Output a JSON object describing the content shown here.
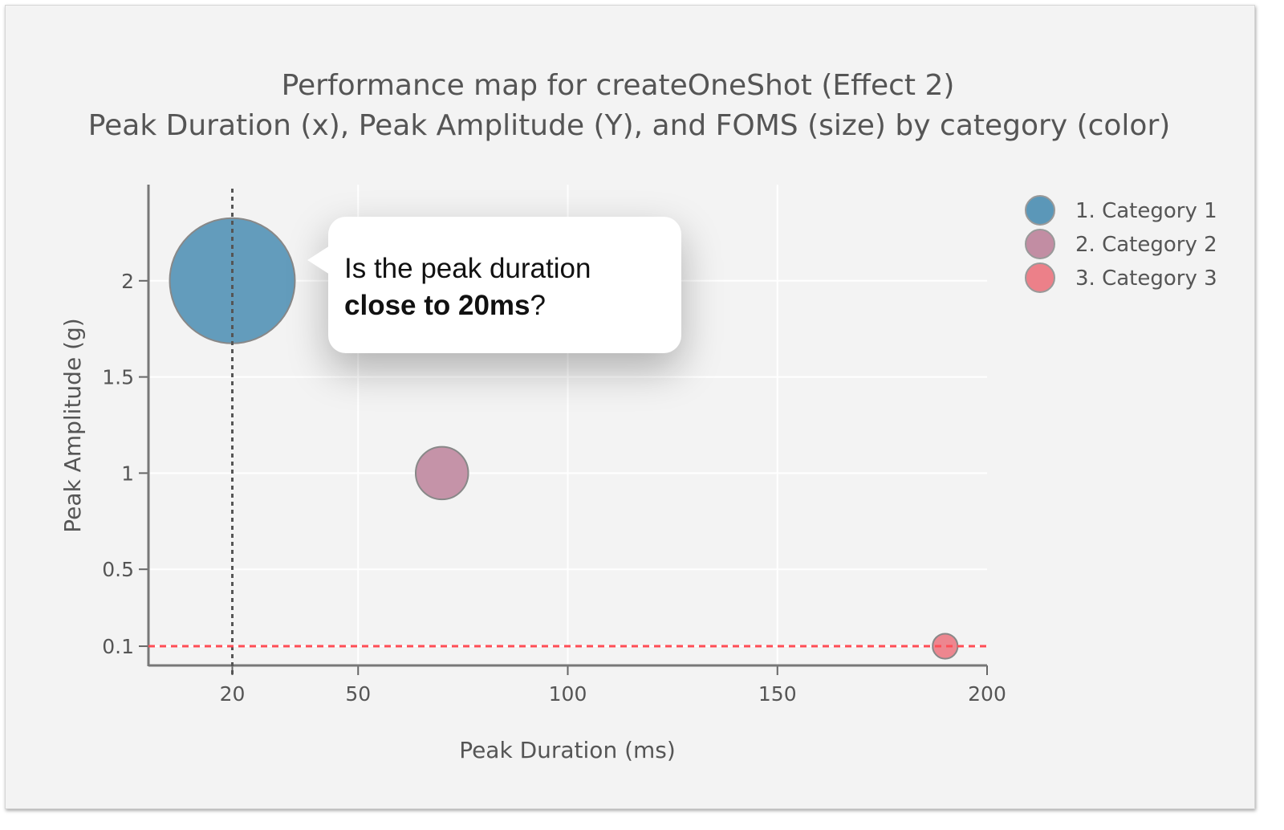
{
  "chart_data": {
    "type": "scatter",
    "title": "Performance map for createOneShot (Effect 2)",
    "subtitle": "Peak Duration (x), Peak Amplitude (Y), and FOMS (size) by category (color)",
    "xlabel": "Peak Duration (ms)",
    "ylabel": "Peak Amplitude (g)",
    "xlim": [
      0,
      200
    ],
    "ylim": [
      0,
      2.5
    ],
    "xticks": [
      "20",
      "50",
      "100",
      "150",
      "200"
    ],
    "yticks": [
      "0.1",
      "0.5",
      "1",
      "1.5",
      "2"
    ],
    "grid": true,
    "legend_position": "top-right",
    "series": [
      {
        "name": "1. Category 1",
        "color": "#5b97b8",
        "x": [
          20
        ],
        "y": [
          2
        ],
        "relative_size": [
          1.0
        ]
      },
      {
        "name": "2. Category 2",
        "color": "#c28da3",
        "x": [
          70
        ],
        "y": [
          1
        ],
        "relative_size": [
          0.42
        ]
      },
      {
        "name": "3. Category 3",
        "color": "#ec8089",
        "x": [
          190
        ],
        "y": [
          0.1
        ],
        "relative_size": [
          0.2
        ]
      }
    ],
    "reference_lines": [
      {
        "axis": "x",
        "value": 20,
        "style": "dotted",
        "color": "#555555"
      },
      {
        "axis": "y",
        "value": 0.1,
        "style": "dashed",
        "color": "#ff4d55"
      }
    ]
  },
  "callout": {
    "line1": "Is the peak duration",
    "line2_bold": "close to 20ms",
    "line2_rest": "?"
  }
}
